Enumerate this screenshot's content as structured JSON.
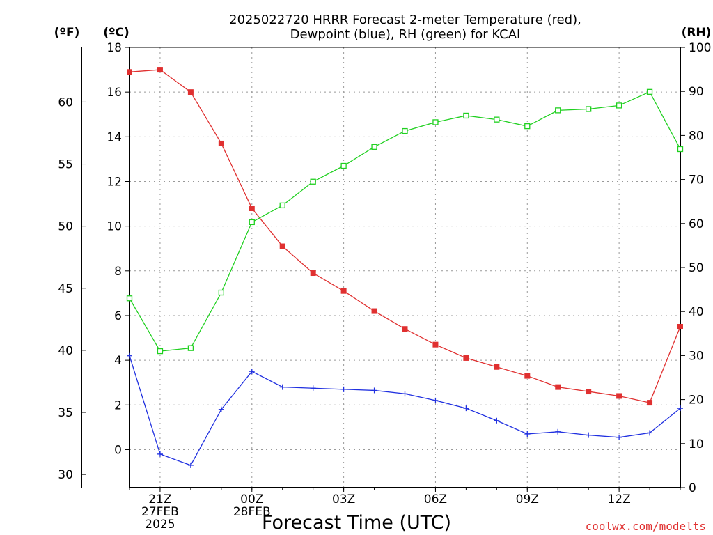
{
  "chart_data": {
    "type": "line",
    "title_line1": "2025022720 HRRR Forecast 2-meter Temperature (red),",
    "title_line2": "Dewpoint (blue), RH (green) for KCAI",
    "xlabel": "Forecast Time (UTC)",
    "credit": "coolwx.com/modelts",
    "unit_left_f": "(ºF)",
    "unit_left_c": "(ºC)",
    "unit_right": "(RH)",
    "x_hours": [
      0,
      1,
      2,
      3,
      4,
      5,
      6,
      7,
      8,
      9,
      10,
      11,
      12,
      13,
      14,
      15,
      16,
      17,
      18
    ],
    "x_ticks": [
      {
        "hour": 1,
        "lines": [
          "21Z",
          "27FEB",
          "2025"
        ]
      },
      {
        "hour": 4,
        "lines": [
          "00Z",
          "28FEB"
        ]
      },
      {
        "hour": 7,
        "lines": [
          "03Z"
        ]
      },
      {
        "hour": 10,
        "lines": [
          "06Z"
        ]
      },
      {
        "hour": 13,
        "lines": [
          "09Z"
        ]
      },
      {
        "hour": 16,
        "lines": [
          "12Z"
        ]
      }
    ],
    "celsius_axis": {
      "ylim": [
        -1.7,
        18
      ],
      "ticks": [
        0,
        2,
        4,
        6,
        8,
        10,
        12,
        14,
        16,
        18
      ]
    },
    "fahrenheit_axis": {
      "ticks": [
        30,
        35,
        40,
        45,
        50,
        55,
        60
      ]
    },
    "rh_axis": {
      "ylim": [
        0,
        100
      ],
      "ticks": [
        0,
        10,
        20,
        30,
        40,
        50,
        60,
        70,
        80,
        90,
        100
      ]
    },
    "series": [
      {
        "name": "Temperature",
        "axis": "celsius",
        "color": "#e03030",
        "marker": "filled-square",
        "values": [
          16.9,
          17.0,
          16.0,
          13.7,
          10.8,
          9.1,
          7.9,
          7.1,
          6.2,
          5.4,
          4.7,
          4.1,
          3.7,
          3.3,
          2.8,
          2.6,
          2.4,
          2.1,
          5.5
        ]
      },
      {
        "name": "Dewpoint",
        "axis": "celsius",
        "color": "#2030e0",
        "marker": "plus",
        "values": [
          4.2,
          -0.2,
          -0.7,
          1.8,
          3.5,
          2.8,
          2.75,
          2.7,
          2.65,
          2.5,
          2.2,
          1.85,
          1.3,
          0.7,
          0.8,
          0.65,
          0.55,
          0.75,
          1.85
        ]
      },
      {
        "name": "RH",
        "axis": "rh",
        "color": "#20d020",
        "marker": "open-square",
        "values": [
          43,
          31,
          31.7,
          44.3,
          60.3,
          64.1,
          69.5,
          73.1,
          77.4,
          81.0,
          83.0,
          84.5,
          83.6,
          82.1,
          85.7,
          86.0,
          86.8,
          89.9,
          76.9
        ]
      }
    ],
    "grid": true
  }
}
